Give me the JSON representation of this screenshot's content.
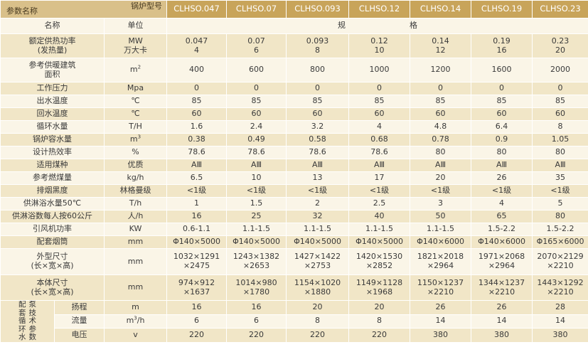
{
  "header": {
    "corner_bottom": "参数名称",
    "corner_top": "锅炉型号",
    "models": [
      "CLHSO.047",
      "CLHSO.07",
      "CLHSO.093",
      "CLHSO.12",
      "CLHSO.14",
      "CLHSO.19",
      "CLHSO.23"
    ]
  },
  "subheader": {
    "name": "名称",
    "unit": "单位",
    "spec_a": "规",
    "spec_b": "格"
  },
  "rows": [
    {
      "name1": "额定供热功率",
      "name2": "(发热量)",
      "unit1": "MW",
      "unit2": "万大卡",
      "values": [
        [
          "0.047",
          "4"
        ],
        [
          "0.07",
          "6"
        ],
        [
          "0.093",
          "8"
        ],
        [
          "0.12",
          "10"
        ],
        [
          "0.14",
          "12"
        ],
        [
          "0.19",
          "16"
        ],
        [
          "0.23",
          "20"
        ]
      ]
    },
    {
      "name1": "参考供暖建筑",
      "name2": "面积",
      "unit1": "m",
      "unit_sup": "2",
      "values": [
        [
          "400"
        ],
        [
          "600"
        ],
        [
          "800"
        ],
        [
          "1000"
        ],
        [
          "1200"
        ],
        [
          "1600"
        ],
        [
          "2000"
        ]
      ]
    },
    {
      "name1": "工作压力",
      "unit1": "Mpa",
      "values": [
        [
          "0"
        ],
        [
          "0"
        ],
        [
          "0"
        ],
        [
          "0"
        ],
        [
          "0"
        ],
        [
          "0"
        ],
        [
          "0"
        ]
      ]
    },
    {
      "name1": "出水温度",
      "unit1": "℃",
      "values": [
        [
          "85"
        ],
        [
          "85"
        ],
        [
          "85"
        ],
        [
          "85"
        ],
        [
          "85"
        ],
        [
          "85"
        ],
        [
          "85"
        ]
      ]
    },
    {
      "name1": "回水温度",
      "unit1": "℃",
      "values": [
        [
          "60"
        ],
        [
          "60"
        ],
        [
          "60"
        ],
        [
          "60"
        ],
        [
          "60"
        ],
        [
          "60"
        ],
        [
          "60"
        ]
      ]
    },
    {
      "name1": "循环水量",
      "unit1": "T/H",
      "values": [
        [
          "1.6"
        ],
        [
          "2.4"
        ],
        [
          "3.2"
        ],
        [
          "4"
        ],
        [
          "4.8"
        ],
        [
          "6.4"
        ],
        [
          "8"
        ]
      ]
    },
    {
      "name1": "锅炉容水量",
      "unit1": "m",
      "unit_sup": "3",
      "values": [
        [
          "0.38"
        ],
        [
          "0.49"
        ],
        [
          "0.58"
        ],
        [
          "0.68"
        ],
        [
          "0.78"
        ],
        [
          "0.9"
        ],
        [
          "1.05"
        ]
      ]
    },
    {
      "name1": "设计热效率",
      "unit1": "%",
      "values": [
        [
          "78.6"
        ],
        [
          "78.6"
        ],
        [
          "78.6"
        ],
        [
          "78.6"
        ],
        [
          "80"
        ],
        [
          "80"
        ],
        [
          "80"
        ]
      ]
    },
    {
      "name1": "适用煤种",
      "unit1": "优质",
      "values": [
        [
          "AⅢ"
        ],
        [
          "AⅢ"
        ],
        [
          "AⅢ"
        ],
        [
          "AⅢ"
        ],
        [
          "AⅢ"
        ],
        [
          "AⅢ"
        ],
        [
          "AⅢ"
        ]
      ]
    },
    {
      "name1": "参考燃煤量",
      "unit1": "kg/h",
      "values": [
        [
          "6.5"
        ],
        [
          "10"
        ],
        [
          "13"
        ],
        [
          "17"
        ],
        [
          "20"
        ],
        [
          "26"
        ],
        [
          "35"
        ]
      ]
    },
    {
      "name1": "排烟黑度",
      "unit1": "林格曼级",
      "values": [
        [
          "<1级"
        ],
        [
          "<1级"
        ],
        [
          "<1级"
        ],
        [
          "<1级"
        ],
        [
          "<1级"
        ],
        [
          "<1级"
        ],
        [
          "<1级"
        ]
      ]
    },
    {
      "name1": "供淋浴水量50℃",
      "unit1": "T/h",
      "values": [
        [
          "1"
        ],
        [
          "1.5"
        ],
        [
          "2"
        ],
        [
          "2.5"
        ],
        [
          "3"
        ],
        [
          "4"
        ],
        [
          "5"
        ]
      ]
    },
    {
      "name1": "供淋浴数每人按60公斤",
      "unit1": "人/h",
      "values": [
        [
          "16"
        ],
        [
          "25"
        ],
        [
          "32"
        ],
        [
          "40"
        ],
        [
          "50"
        ],
        [
          "65"
        ],
        [
          "80"
        ]
      ]
    },
    {
      "name1": "引风机功率",
      "unit1": "KW",
      "values": [
        [
          "0.6-1.1"
        ],
        [
          "1.1-1.5"
        ],
        [
          "1.1-1.5"
        ],
        [
          "1.1-1.5"
        ],
        [
          "1.1-1.5"
        ],
        [
          "1.5-2.2"
        ],
        [
          "1.5-2.2"
        ]
      ]
    },
    {
      "name1": "配套烟筒",
      "unit1": "mm",
      "values": [
        [
          "Φ140×5000"
        ],
        [
          "Φ140×5000"
        ],
        [
          "Φ140×5000"
        ],
        [
          "Φ140×5000"
        ],
        [
          "Φ140×6000"
        ],
        [
          "Φ140×6000"
        ],
        [
          "Φ165×6000"
        ]
      ]
    },
    {
      "name1": "外型尺寸",
      "name2": "(长×宽×高)",
      "unit1": "mm",
      "values": [
        [
          "1032×1291",
          "×2475"
        ],
        [
          "1243×1382",
          "×2653"
        ],
        [
          "1427×1422",
          "×2753"
        ],
        [
          "1420×1530",
          "×2852"
        ],
        [
          "1821×2018",
          "×2964"
        ],
        [
          "1971×2068",
          "×2964"
        ],
        [
          "2070×2129",
          "×2210"
        ]
      ]
    },
    {
      "name1": "本体尺寸",
      "name2": "(长×宽×高)",
      "unit1": "mm",
      "values": [
        [
          "974×912",
          "×1637"
        ],
        [
          "1014×980",
          "×1780"
        ],
        [
          "1154×1020",
          "×1880"
        ],
        [
          "1149×1128",
          "×1968"
        ],
        [
          "1150×1237",
          "×2210"
        ],
        [
          "1344×1237",
          "×2210"
        ],
        [
          "1443×1292",
          "×2210"
        ]
      ]
    }
  ],
  "pump": {
    "side_cols": [
      [
        "配",
        "套",
        "循",
        "环",
        "水"
      ],
      [
        "泵",
        "技",
        "术",
        "参",
        "数"
      ]
    ],
    "rows": [
      {
        "name": "扬程",
        "unit": "m",
        "values": [
          "16",
          "16",
          "20",
          "20",
          "26",
          "26",
          "28"
        ]
      },
      {
        "name": "流量",
        "unit": "m",
        "unit_sup": "3",
        "unit_tail": "/h",
        "values": [
          "6",
          "6",
          "8",
          "8",
          "14",
          "14",
          "14"
        ]
      },
      {
        "name": "电压",
        "unit": "v",
        "values": [
          "220",
          "220",
          "220",
          "220",
          "380",
          "380",
          "380"
        ]
      }
    ]
  }
}
